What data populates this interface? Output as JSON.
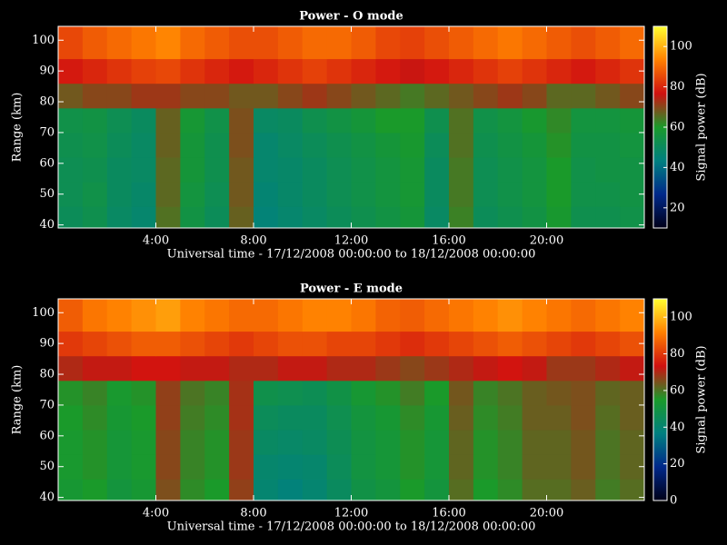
{
  "chart_data": [
    {
      "type": "heatmap",
      "title": "Power - O mode",
      "xlabel": "Universal time - 17/12/2008 00:00:00 to 18/12/2008 00:00:00",
      "ylabel": "Range (km)",
      "colorbar_label": "Signal power (dB)",
      "x": [
        0.5,
        1.5,
        2.5,
        3.5,
        4.5,
        5.5,
        6.5,
        7.5,
        8.5,
        9.5,
        10.5,
        11.5,
        12.5,
        13.5,
        14.5,
        15.5,
        16.5,
        17.5,
        18.5,
        19.5,
        20.5,
        21.5,
        22.5,
        23.5
      ],
      "y": [
        42,
        50,
        58,
        66,
        74,
        82,
        90,
        98
      ],
      "z": [
        [
          51,
          53,
          49,
          47,
          65,
          55,
          51,
          67,
          45,
          47,
          49,
          51,
          53,
          55,
          57,
          49,
          63,
          51,
          53,
          55,
          59,
          53,
          53,
          54
        ],
        [
          52,
          54,
          50,
          48,
          66,
          56,
          52,
          68,
          46,
          48,
          50,
          52,
          54,
          56,
          58,
          50,
          64,
          52,
          54,
          56,
          60,
          54,
          54,
          55
        ],
        [
          52,
          53,
          50,
          49,
          66,
          57,
          53,
          68,
          47,
          48,
          50,
          52,
          54,
          56,
          58,
          50,
          64,
          52,
          54,
          56,
          60,
          54,
          55,
          55
        ],
        [
          53,
          54,
          51,
          49,
          67,
          57,
          53,
          69,
          47,
          49,
          51,
          53,
          55,
          57,
          59,
          51,
          65,
          53,
          55,
          57,
          61,
          55,
          55,
          56
        ],
        [
          54,
          55,
          52,
          50,
          67,
          58,
          54,
          69,
          49,
          50,
          53,
          55,
          57,
          60,
          60,
          53,
          65,
          54,
          56,
          59,
          62,
          56,
          56,
          57
        ],
        [
          68,
          70,
          70,
          72,
          72,
          70,
          70,
          68,
          68,
          70,
          72,
          70,
          68,
          66,
          64,
          66,
          68,
          70,
          72,
          70,
          66,
          66,
          68,
          70
        ],
        [
          78,
          80,
          82,
          84,
          85,
          82,
          80,
          78,
          80,
          82,
          84,
          82,
          80,
          78,
          76,
          78,
          80,
          82,
          84,
          82,
          80,
          78,
          80,
          82
        ],
        [
          85,
          88,
          90,
          92,
          94,
          90,
          88,
          86,
          86,
          88,
          90,
          90,
          88,
          85,
          84,
          86,
          88,
          90,
          92,
          90,
          88,
          86,
          88,
          90
        ]
      ],
      "xlim": [
        0,
        24
      ],
      "ylim": [
        39,
        104.5
      ],
      "xticks": [
        {
          "value": 4,
          "label": "4:00"
        },
        {
          "value": 8,
          "label": "8:00"
        },
        {
          "value": 12,
          "label": "12:00"
        },
        {
          "value": 16,
          "label": "16:00"
        },
        {
          "value": 20,
          "label": "20:00"
        }
      ],
      "yticks": [
        40,
        50,
        60,
        70,
        80,
        90,
        100
      ],
      "clim": [
        10,
        110
      ],
      "cticks": [
        20,
        40,
        60,
        80,
        100
      ],
      "colormap": [
        "#000018",
        "#00288a",
        "#008080",
        "#1a9a2a",
        "#d01010",
        "#ff8000",
        "#ffff30"
      ]
    },
    {
      "type": "heatmap",
      "title": "Power - E mode",
      "xlabel": "Universal time - 17/12/2008 00:00:00 to 18/12/2008 00:00:00",
      "ylabel": "Range (km)",
      "colorbar_label": "Signal power (dB)",
      "x": [
        0.5,
        1.5,
        2.5,
        3.5,
        4.5,
        5.5,
        6.5,
        7.5,
        8.5,
        9.5,
        10.5,
        11.5,
        12.5,
        13.5,
        14.5,
        15.5,
        16.5,
        17.5,
        18.5,
        19.5,
        20.5,
        21.5,
        22.5,
        23.5
      ],
      "y": [
        42,
        50,
        58,
        66,
        74,
        82,
        90,
        98
      ],
      "z": [
        [
          53,
          55,
          51,
          53,
          65,
          57,
          55,
          67,
          40,
          38,
          40,
          44,
          49,
          51,
          55,
          51,
          61,
          55,
          57,
          61,
          61,
          63,
          59,
          61
        ],
        [
          54,
          56,
          52,
          54,
          66,
          58,
          56,
          68,
          41,
          40,
          41,
          45,
          50,
          52,
          56,
          52,
          62,
          56,
          58,
          62,
          62,
          64,
          60,
          62
        ],
        [
          54,
          56,
          52,
          54,
          66,
          58,
          56,
          68,
          43,
          42,
          43,
          46,
          50,
          52,
          56,
          52,
          62,
          56,
          58,
          62,
          62,
          64,
          60,
          62
        ],
        [
          55,
          57,
          53,
          55,
          67,
          59,
          57,
          69,
          45,
          44,
          44,
          47,
          51,
          53,
          57,
          53,
          63,
          57,
          59,
          63,
          63,
          65,
          61,
          63
        ],
        [
          56,
          58,
          54,
          56,
          67,
          60,
          58,
          69,
          48,
          47,
          46,
          49,
          53,
          56,
          59,
          55,
          64,
          58,
          60,
          63,
          64,
          65,
          62,
          63
        ],
        [
          70,
          72,
          72,
          74,
          74,
          72,
          72,
          70,
          70,
          72,
          72,
          70,
          70,
          68,
          66,
          68,
          70,
          72,
          74,
          72,
          68,
          68,
          70,
          72
        ],
        [
          80,
          82,
          84,
          86,
          86,
          84,
          82,
          80,
          82,
          84,
          84,
          82,
          82,
          80,
          78,
          80,
          82,
          84,
          86,
          84,
          82,
          80,
          82,
          84
        ],
        [
          86,
          90,
          92,
          94,
          96,
          92,
          90,
          88,
          88,
          90,
          92,
          92,
          90,
          87,
          86,
          88,
          90,
          92,
          94,
          92,
          90,
          88,
          90,
          92
        ]
      ],
      "xlim": [
        0,
        24
      ],
      "ylim": [
        39,
        104.5
      ],
      "xticks": [
        {
          "value": 4,
          "label": "4:00"
        },
        {
          "value": 8,
          "label": "8:00"
        },
        {
          "value": 12,
          "label": "12:00"
        },
        {
          "value": 16,
          "label": "16:00"
        },
        {
          "value": 20,
          "label": "20:00"
        }
      ],
      "yticks": [
        40,
        50,
        60,
        70,
        80,
        90,
        100
      ],
      "clim": [
        0,
        110
      ],
      "cticks": [
        0,
        20,
        40,
        60,
        80,
        100
      ],
      "colormap": [
        "#000018",
        "#00288a",
        "#008080",
        "#1a9a2a",
        "#d01010",
        "#ff8000",
        "#ffff30"
      ]
    }
  ]
}
